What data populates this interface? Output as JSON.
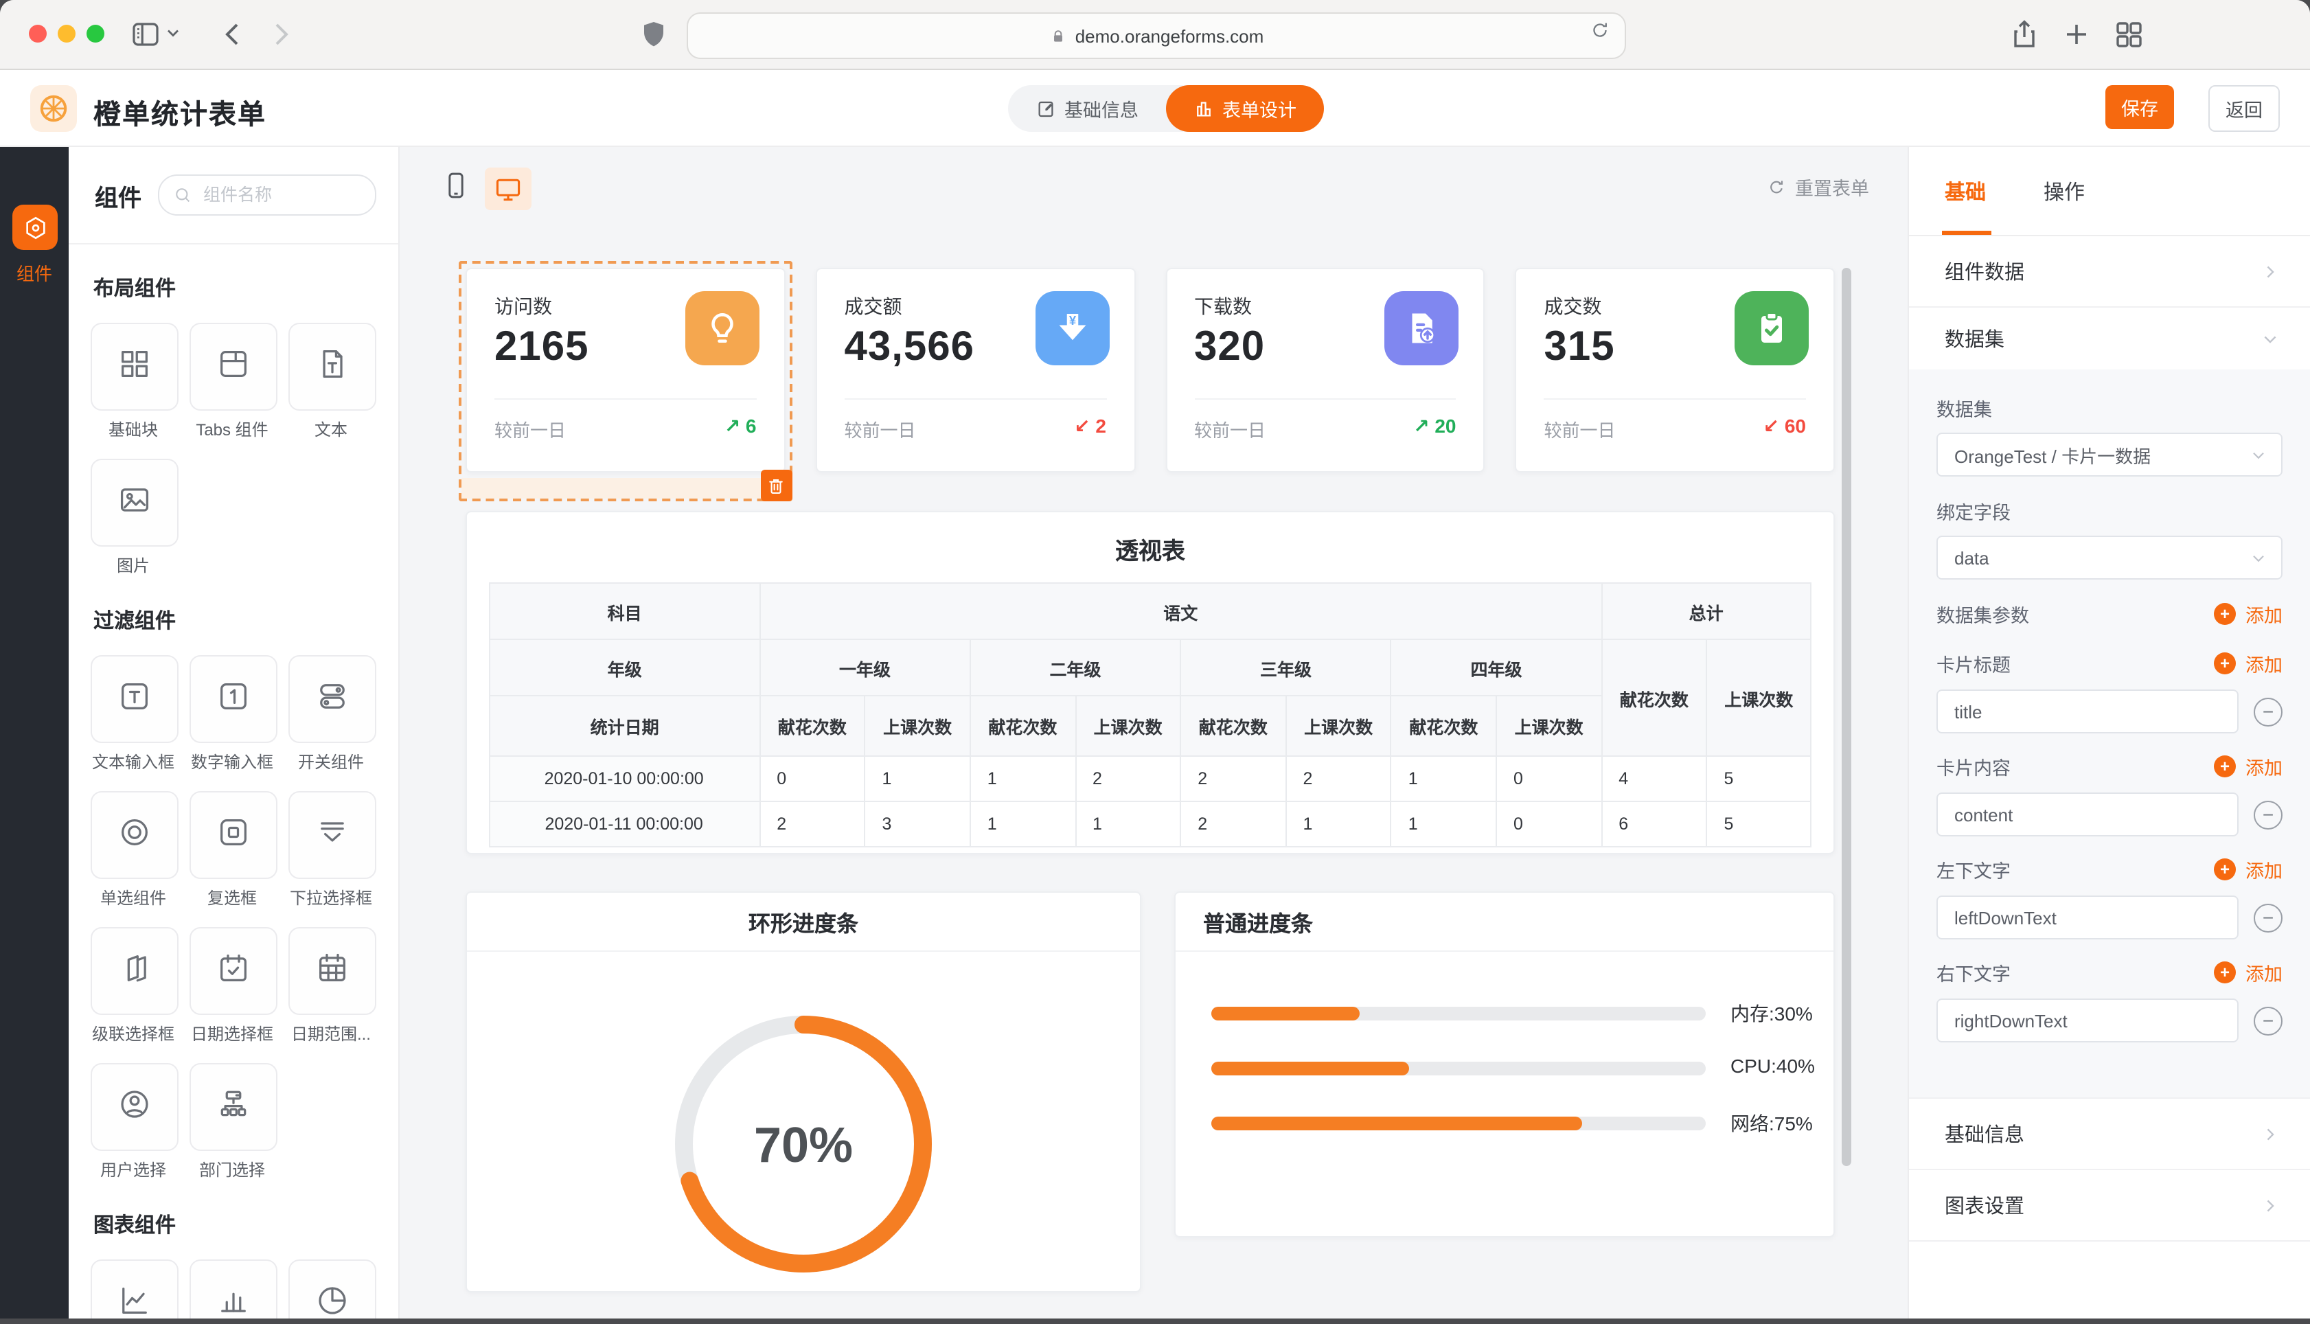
{
  "browser": {
    "url": "demo.orangeforms.com"
  },
  "header": {
    "app_title": "橙单统计表单",
    "nav": [
      {
        "label": "基础信息",
        "active": false
      },
      {
        "label": "表单设计",
        "active": true
      }
    ],
    "save_label": "保存",
    "back_label": "返回"
  },
  "rail": {
    "item_label": "组件"
  },
  "panel": {
    "title": "组件",
    "search_placeholder": "组件名称",
    "sections": [
      {
        "title": "布局组件",
        "items": [
          {
            "icon": "grid-icon",
            "label": "基础块"
          },
          {
            "icon": "tabs-icon",
            "label": "Tabs 组件"
          },
          {
            "icon": "text-doc-icon",
            "label": "文本"
          },
          {
            "icon": "image-icon",
            "label": "图片"
          }
        ]
      },
      {
        "title": "过滤组件",
        "items": [
          {
            "icon": "input-text-icon",
            "label": "文本输入框"
          },
          {
            "icon": "input-number-icon",
            "label": "数字输入框"
          },
          {
            "icon": "switch-icon",
            "label": "开关组件"
          },
          {
            "icon": "radio-icon",
            "label": "单选组件"
          },
          {
            "icon": "checkbox-icon",
            "label": "复选框"
          },
          {
            "icon": "select-icon",
            "label": "下拉选择框"
          },
          {
            "icon": "cascade-icon",
            "label": "级联选择框"
          },
          {
            "icon": "date-icon",
            "label": "日期选择框"
          },
          {
            "icon": "daterange-icon",
            "label": "日期范围..."
          },
          {
            "icon": "user-icon",
            "label": "用户选择"
          },
          {
            "icon": "dept-icon",
            "label": "部门选择"
          }
        ]
      },
      {
        "title": "图表组件",
        "items": [
          {
            "icon": "chart-line-icon",
            "label": ""
          },
          {
            "icon": "chart-bar-icon",
            "label": ""
          },
          {
            "icon": "chart-pie-icon",
            "label": ""
          }
        ]
      }
    ]
  },
  "canvas": {
    "reset_label": "重置表单",
    "stat_cards": [
      {
        "title": "访问数",
        "value": "2165",
        "icon": "bulb-icon",
        "color": "#f5a74f",
        "footer": "较前一日",
        "trend": "up",
        "delta": "6",
        "selected": true
      },
      {
        "title": "成交额",
        "value": "43,566",
        "icon": "yen-down-icon",
        "color": "#66a9f6",
        "footer": "较前一日",
        "trend": "down",
        "delta": "2",
        "selected": false
      },
      {
        "title": "下载数",
        "value": "320",
        "icon": "file-up-icon",
        "color": "#8087f0",
        "footer": "较前一日",
        "trend": "up",
        "delta": "20",
        "selected": false
      },
      {
        "title": "成交数",
        "value": "315",
        "icon": "clipboard-check-icon",
        "color": "#4eb35a",
        "footer": "较前一日",
        "trend": "down",
        "delta": "60",
        "selected": false
      }
    ]
  },
  "chart_data": [
    {
      "type": "table",
      "title": "透视表",
      "subject_label": "科目",
      "subject": "语文",
      "total_label": "总计",
      "grade_label": "年级",
      "grades": [
        "一年级",
        "二年级",
        "三年级",
        "四年级"
      ],
      "metrics": [
        "献花次数",
        "上课次数"
      ],
      "date_label": "统计日期",
      "rows": [
        {
          "date": "2020-01-10 00:00:00",
          "values": [
            0,
            1,
            1,
            2,
            2,
            2,
            1,
            0
          ],
          "totals": [
            4,
            5
          ]
        },
        {
          "date": "2020-01-11 00:00:00",
          "values": [
            2,
            3,
            1,
            1,
            2,
            1,
            1,
            0
          ],
          "totals": [
            6,
            5
          ]
        }
      ]
    },
    {
      "type": "ring",
      "title": "环形进度条",
      "value": 70,
      "label": "70%",
      "color": "#f57e23"
    },
    {
      "type": "bar",
      "title": "普通进度条",
      "categories": [
        "内存",
        "CPU",
        "网络"
      ],
      "values": [
        30,
        40,
        75
      ],
      "labels": [
        "内存:30%",
        "CPU:40%",
        "网络:75%"
      ],
      "color": "#f57e23",
      "xlim": [
        0,
        100
      ]
    }
  ],
  "inspector": {
    "tabs": [
      {
        "label": "基础",
        "active": true
      },
      {
        "label": "操作",
        "active": false
      }
    ],
    "component_data_label": "组件数据",
    "dataset_section_label": "数据集",
    "dataset_label": "数据集",
    "dataset_value": "OrangeTest / 卡片一数据",
    "bind_field_label": "绑定字段",
    "bind_field_value": "data",
    "param_label": "数据集参数",
    "add_label": "添加",
    "fields": [
      {
        "label": "卡片标题",
        "value": "title"
      },
      {
        "label": "卡片内容",
        "value": "content"
      },
      {
        "label": "左下文字",
        "value": "leftDownText"
      },
      {
        "label": "右下文字",
        "value": "rightDownText"
      }
    ],
    "footer_rows": [
      "基础信息",
      "图表设置"
    ]
  }
}
